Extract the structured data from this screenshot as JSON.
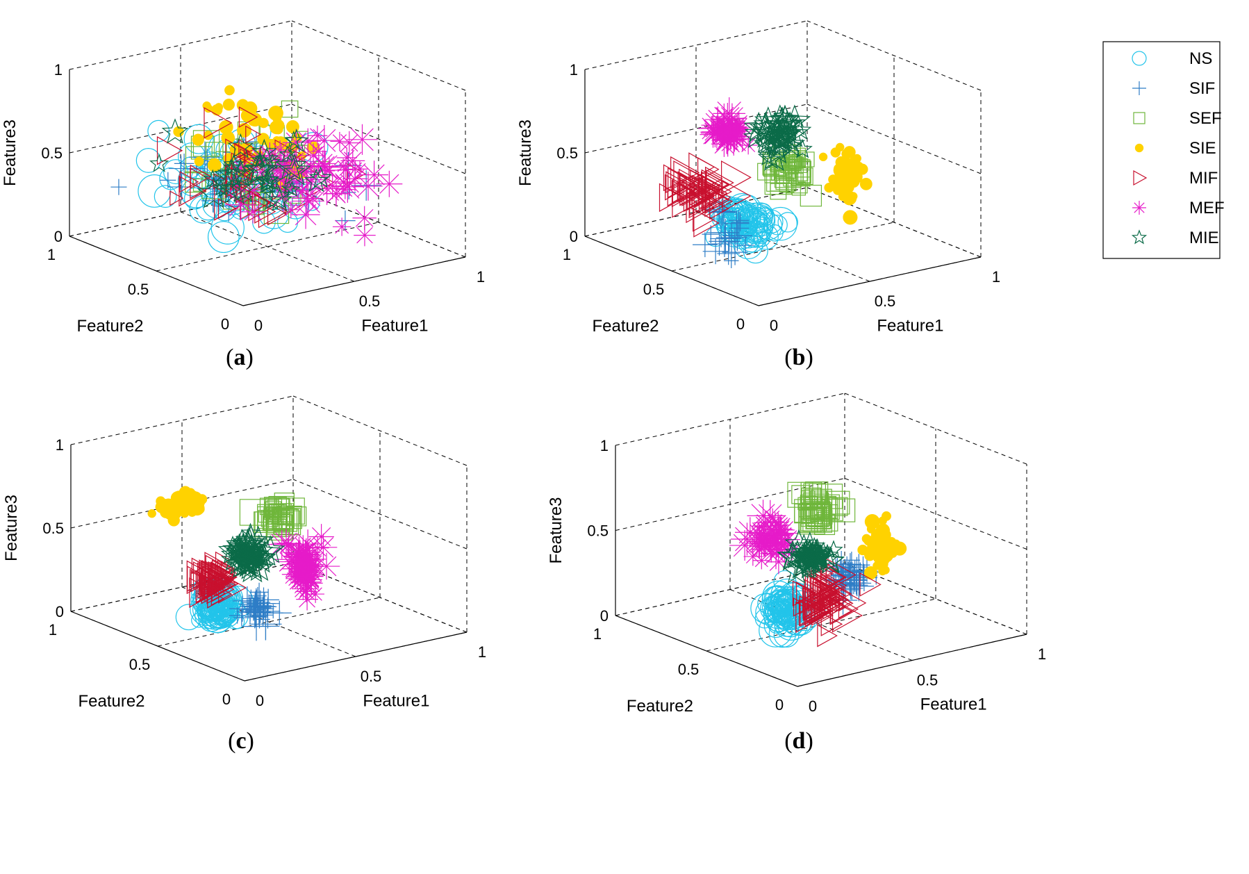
{
  "chart_data": [
    {
      "type": "scatter",
      "panel": "(a)",
      "panel_letter": "a",
      "xlabel": "Feature1",
      "ylabel": "Feature2",
      "zlabel": "Feature3",
      "xlim": [
        0,
        1
      ],
      "ylim": [
        0,
        1
      ],
      "zlim": [
        0,
        1
      ],
      "ticks": [
        "0",
        "0.5",
        "1"
      ],
      "clusters": [
        {
          "class": "NS",
          "center": [
            0.38,
            0.52,
            0.42
          ],
          "spread": [
            0.22,
            0.24,
            0.16
          ],
          "count": 70
        },
        {
          "class": "SIF",
          "center": [
            0.4,
            0.55,
            0.4
          ],
          "spread": [
            0.22,
            0.24,
            0.16
          ],
          "count": 45
        },
        {
          "class": "SEF",
          "center": [
            0.48,
            0.52,
            0.46
          ],
          "spread": [
            0.22,
            0.22,
            0.16
          ],
          "count": 40
        },
        {
          "class": "SIE",
          "center": [
            0.52,
            0.6,
            0.6
          ],
          "spread": [
            0.2,
            0.22,
            0.14
          ],
          "count": 45
        },
        {
          "class": "MIF",
          "center": [
            0.38,
            0.45,
            0.44
          ],
          "spread": [
            0.22,
            0.24,
            0.16
          ],
          "count": 45
        },
        {
          "class": "MEF",
          "center": [
            0.6,
            0.4,
            0.44
          ],
          "spread": [
            0.22,
            0.22,
            0.16
          ],
          "count": 70
        },
        {
          "class": "MIE",
          "center": [
            0.45,
            0.5,
            0.44
          ],
          "spread": [
            0.22,
            0.22,
            0.16
          ],
          "count": 40
        }
      ]
    },
    {
      "type": "scatter",
      "panel": "(b)",
      "panel_letter": "b",
      "xlabel": "Feature1",
      "ylabel": "Feature2",
      "zlabel": "Feature3",
      "xlim": [
        0,
        1
      ],
      "ylim": [
        0,
        1
      ],
      "zlim": [
        0,
        1
      ],
      "ticks": [
        "0",
        "0.5",
        "1"
      ],
      "clusters": [
        {
          "class": "NS",
          "center": [
            0.25,
            0.4,
            0.26
          ],
          "spread": [
            0.08,
            0.1,
            0.07
          ],
          "count": 90
        },
        {
          "class": "SIF",
          "center": [
            0.15,
            0.38,
            0.22
          ],
          "spread": [
            0.04,
            0.06,
            0.15
          ],
          "count": 25
        },
        {
          "class": "SEF",
          "center": [
            0.58,
            0.55,
            0.42
          ],
          "spread": [
            0.06,
            0.06,
            0.1
          ],
          "count": 45
        },
        {
          "class": "SIE",
          "center": [
            0.85,
            0.58,
            0.3
          ],
          "spread": [
            0.04,
            0.05,
            0.15
          ],
          "count": 60
        },
        {
          "class": "MIF",
          "center": [
            0.18,
            0.55,
            0.4
          ],
          "spread": [
            0.08,
            0.1,
            0.08
          ],
          "count": 60
        },
        {
          "class": "MEF",
          "center": [
            0.33,
            0.6,
            0.7
          ],
          "spread": [
            0.05,
            0.05,
            0.07
          ],
          "count": 55
        },
        {
          "class": "MIE",
          "center": [
            0.6,
            0.65,
            0.58
          ],
          "spread": [
            0.07,
            0.05,
            0.09
          ],
          "count": 60
        }
      ]
    },
    {
      "type": "scatter",
      "panel": "(c)",
      "panel_letter": "c",
      "xlabel": "Feature1",
      "ylabel": "Feature2",
      "zlabel": "Feature3",
      "xlim": [
        0,
        1
      ],
      "ylim": [
        0,
        1
      ],
      "zlim": [
        0,
        1
      ],
      "ticks": [
        "0",
        "0.5",
        "1"
      ],
      "clusters": [
        {
          "class": "NS",
          "center": [
            0.15,
            0.35,
            0.25
          ],
          "spread": [
            0.05,
            0.06,
            0.07
          ],
          "count": 90
        },
        {
          "class": "SIF",
          "center": [
            0.3,
            0.32,
            0.2
          ],
          "spread": [
            0.05,
            0.05,
            0.07
          ],
          "count": 45
        },
        {
          "class": "SEF",
          "center": [
            0.62,
            0.6,
            0.55
          ],
          "spread": [
            0.05,
            0.05,
            0.06
          ],
          "count": 45
        },
        {
          "class": "SIE",
          "center": [
            0.25,
            0.68,
            0.7
          ],
          "spread": [
            0.08,
            0.04,
            0.07
          ],
          "count": 55
        },
        {
          "class": "MIF",
          "center": [
            0.22,
            0.45,
            0.35
          ],
          "spread": [
            0.05,
            0.05,
            0.08
          ],
          "count": 60
        },
        {
          "class": "MEF",
          "center": [
            0.58,
            0.4,
            0.35
          ],
          "spread": [
            0.05,
            0.05,
            0.14
          ],
          "count": 80
        },
        {
          "class": "MIE",
          "center": [
            0.45,
            0.55,
            0.4
          ],
          "spread": [
            0.05,
            0.05,
            0.06
          ],
          "count": 80
        }
      ]
    },
    {
      "type": "scatter",
      "panel": "(d)",
      "panel_letter": "d",
      "xlabel": "Feature1",
      "ylabel": "Feature2",
      "zlabel": "Feature3",
      "xlim": [
        0,
        1
      ],
      "ylim": [
        0,
        1
      ],
      "zlim": [
        0,
        1
      ],
      "ticks": [
        "0",
        "0.5",
        "1"
      ],
      "clusters": [
        {
          "class": "NS",
          "center": [
            0.15,
            0.25,
            0.3
          ],
          "spread": [
            0.05,
            0.06,
            0.1
          ],
          "count": 90
        },
        {
          "class": "SIF",
          "center": [
            0.62,
            0.5,
            0.25
          ],
          "spread": [
            0.05,
            0.06,
            0.08
          ],
          "count": 50
        },
        {
          "class": "SEF",
          "center": [
            0.58,
            0.62,
            0.6
          ],
          "spread": [
            0.05,
            0.05,
            0.09
          ],
          "count": 50
        },
        {
          "class": "SIE",
          "center": [
            0.8,
            0.55,
            0.35
          ],
          "spread": [
            0.04,
            0.04,
            0.12
          ],
          "count": 60
        },
        {
          "class": "MIF",
          "center": [
            0.4,
            0.35,
            0.25
          ],
          "spread": [
            0.06,
            0.07,
            0.12
          ],
          "count": 70
        },
        {
          "class": "MEF",
          "center": [
            0.28,
            0.5,
            0.58
          ],
          "spread": [
            0.05,
            0.05,
            0.09
          ],
          "count": 60
        },
        {
          "class": "MIE",
          "center": [
            0.5,
            0.55,
            0.38
          ],
          "spread": [
            0.06,
            0.04,
            0.05
          ],
          "count": 70
        }
      ]
    }
  ],
  "legend": {
    "placement": "top-right",
    "items": [
      {
        "label": "NS",
        "marker": "circle",
        "color": "#22C4EA"
      },
      {
        "label": "SIF",
        "marker": "plus",
        "color": "#2E7DC6"
      },
      {
        "label": "SEF",
        "marker": "square",
        "color": "#6FB63B"
      },
      {
        "label": "SIE",
        "marker": "dot",
        "color": "#FFD200"
      },
      {
        "label": "MIF",
        "marker": "triangle-right",
        "color": "#C8102E"
      },
      {
        "label": "MEF",
        "marker": "asterisk",
        "color": "#E61BC9"
      },
      {
        "label": "MIE",
        "marker": "star",
        "color": "#0B6B48"
      }
    ]
  },
  "grid": true
}
